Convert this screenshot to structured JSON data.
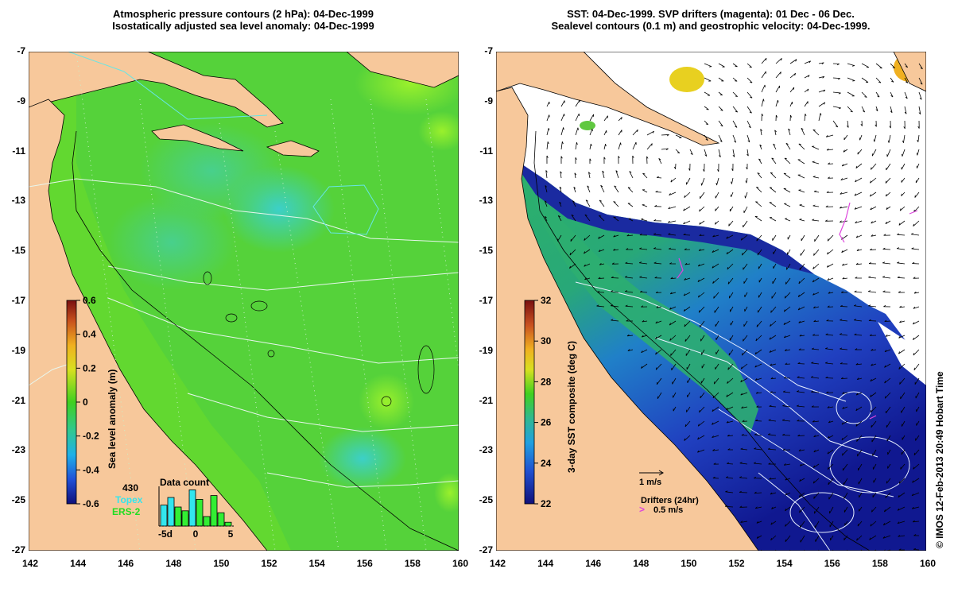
{
  "left_panel": {
    "title_line1": "Atmospheric pressure contours (2 hPa): 04-Dec-1999",
    "title_line2": "Isostatically adjusted sea level anomaly: 04-Dec-1999",
    "colorbar": {
      "label": "Sea level anomaly (m)",
      "ticks": [
        "0.6",
        "0.4",
        "0.2",
        "0",
        "-0.2",
        "-0.4",
        "-0.6"
      ]
    },
    "data_count": {
      "title": "Data count",
      "max_value": "430",
      "legend_topex": "Topex",
      "legend_ers2": "ERS-2",
      "x_ticks": [
        "-5d",
        "0",
        "5"
      ],
      "topex_color": "#33e6ee",
      "ers2_color": "#33ee33",
      "bars_topex": [
        0.55,
        0.75,
        0.45,
        0.3,
        0.95,
        0.0,
        0.0,
        0.0,
        0.0,
        0.0
      ],
      "bars_ers2": [
        0.0,
        0.0,
        0.5,
        0.4,
        0.0,
        0.7,
        0.25,
        0.8,
        0.35,
        0.1
      ]
    }
  },
  "right_panel": {
    "title_line1": "SST: 04-Dec-1999. SVP drifters (magenta): 01 Dec - 06 Dec.",
    "title_line2": "Sealevel contours (0.1 m) and geostrophic velocity: 04-Dec-1999.",
    "colorbar": {
      "label": "3-day SST composite (deg C)",
      "ticks": [
        "32",
        "30",
        "28",
        "26",
        "24",
        "22"
      ]
    },
    "velocity_scale_label": "1 m/s",
    "drifters_label": "Drifters (24hr)",
    "drifters_scale_label": "0.5 m/s"
  },
  "axes": {
    "y_ticks": [
      "-7",
      "-9",
      "-11",
      "-13",
      "-15",
      "-17",
      "-19",
      "-21",
      "-23",
      "-25",
      "-27"
    ],
    "x_ticks": [
      "142",
      "144",
      "146",
      "148",
      "150",
      "152",
      "154",
      "156",
      "158",
      "160"
    ]
  },
  "stamp": "© IMOS 12-Feb-2013 20:49 Hobart Time",
  "colors": {
    "land": "#f7c89b",
    "sea_anomaly_green": "#55d630",
    "cloud": "#ffffff"
  }
}
